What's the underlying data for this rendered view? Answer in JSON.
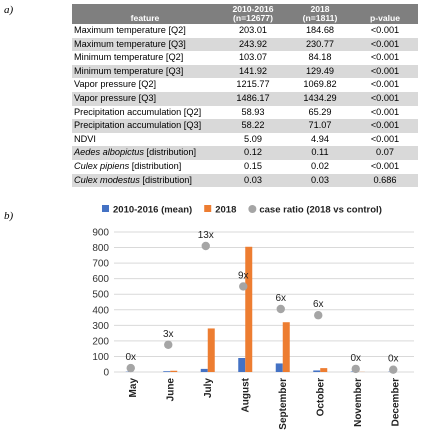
{
  "panel_a_label": "a)",
  "panel_b_label": "b)",
  "table": {
    "headers": {
      "feature": "feature",
      "col1_line1": "2010-2016",
      "col1_line2": "(n=12677)",
      "col2_line1": "2018",
      "col2_line2": "(n=1811)",
      "pvalue": "p-value"
    },
    "rows": [
      {
        "species": "",
        "label": "Maximum temperature [Q2]",
        "v1": "203.01",
        "v2": "184.68",
        "p": "<0.001"
      },
      {
        "species": "",
        "label": "Maximum temperature [Q3]",
        "v1": "243.92",
        "v2": "230.77",
        "p": "<0.001"
      },
      {
        "species": "",
        "label": "Minimum temperature [Q2]",
        "v1": "103.07",
        "v2": "84.18",
        "p": "<0.001"
      },
      {
        "species": "",
        "label": "Minimum temperature [Q3]",
        "v1": "141.92",
        "v2": "129.49",
        "p": "<0.001"
      },
      {
        "species": "",
        "label": "Vapor pressure [Q2]",
        "v1": "1215.77",
        "v2": "1069.82",
        "p": "<0.001"
      },
      {
        "species": "",
        "label": "Vapor pressure [Q3]",
        "v1": "1486.17",
        "v2": "1434.29",
        "p": "<0.001"
      },
      {
        "species": "",
        "label": "Precipitation accumulation [Q2]",
        "v1": "58.93",
        "v2": "65.29",
        "p": "<0.001"
      },
      {
        "species": "",
        "label": "Precipitation accumulation [Q3]",
        "v1": "58.22",
        "v2": "71.07",
        "p": "<0.001"
      },
      {
        "species": "",
        "label": "NDVI",
        "v1": "5.09",
        "v2": "4.94",
        "p": "<0.001"
      },
      {
        "species": "Aedes albopictus",
        "label": " [distribution]",
        "v1": "0.12",
        "v2": "0.11",
        "p": "0.07"
      },
      {
        "species": "Culex pipiens",
        "label": " [distribution]",
        "v1": "0.15",
        "v2": "0.02",
        "p": "<0.001"
      },
      {
        "species": "Culex modestus",
        "label": " [distribution]",
        "v1": "0.03",
        "v2": "0.03",
        "p": "0.686"
      }
    ]
  },
  "chart_data": {
    "type": "bar",
    "categories": [
      "May",
      "June",
      "July",
      "August",
      "September",
      "October",
      "November",
      "December"
    ],
    "series": [
      {
        "name": "2010-2016 (mean)",
        "color": "#4472c4",
        "values": [
          2,
          5,
          20,
          90,
          55,
          10,
          3,
          2
        ]
      },
      {
        "name": "2018",
        "color": "#ed7d31",
        "values": [
          0,
          8,
          280,
          805,
          320,
          25,
          1,
          0
        ]
      },
      {
        "name": "case ratio (2018 vs control)",
        "color": "#a5a5a5",
        "marker": "circle",
        "values": [
          25,
          175,
          810,
          550,
          405,
          365,
          20,
          15
        ],
        "labels": [
          "0x",
          "3x",
          "13x",
          "9x",
          "6x",
          "6x",
          "0x",
          "0x"
        ]
      }
    ],
    "ylim": [
      0,
      900
    ],
    "yticks": [
      0,
      100,
      200,
      300,
      400,
      500,
      600,
      700,
      800,
      900
    ],
    "grid": true,
    "legend": "top"
  }
}
